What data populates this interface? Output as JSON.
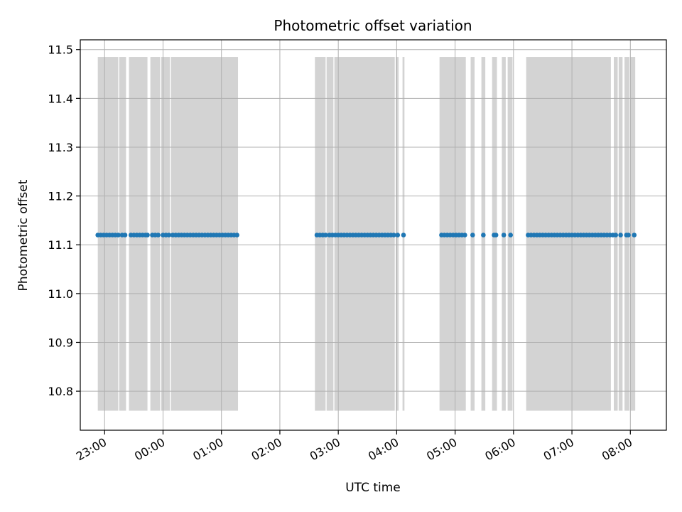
{
  "chart_data": {
    "type": "scatter",
    "title": "Photometric offset variation",
    "xlabel": "UTC time",
    "ylabel": "Photometric offset",
    "xlim": [
      "22:35",
      "08:37"
    ],
    "ylim": [
      10.72,
      11.52
    ],
    "yticks": [
      "10.8",
      "10.9",
      "11.0",
      "11.1",
      "11.2",
      "11.3",
      "11.4",
      "11.5"
    ],
    "xticks": [
      "23:00",
      "00:00",
      "01:00",
      "02:00",
      "03:00",
      "04:00",
      "05:00",
      "06:00",
      "07:00",
      "08:00"
    ],
    "grid": true,
    "band_range": [
      10.76,
      11.485
    ],
    "bands": [
      [
        "22:53",
        "23:14"
      ],
      [
        "23:15",
        "23:22"
      ],
      [
        "23:25",
        "23:44"
      ],
      [
        "23:47",
        "23:57"
      ],
      [
        "23:58",
        "00:07"
      ],
      [
        "00:08",
        "01:17"
      ],
      [
        "02:36",
        "02:47"
      ],
      [
        "02:48",
        "02:55"
      ],
      [
        "02:56",
        "03:58"
      ],
      [
        "03:59",
        "04:02"
      ],
      [
        "04:06",
        "04:08"
      ],
      [
        "04:44",
        "05:11"
      ],
      [
        "05:16",
        "05:20"
      ],
      [
        "05:27",
        "05:31"
      ],
      [
        "05:38",
        "05:43"
      ],
      [
        "05:48",
        "05:52"
      ],
      [
        "05:54",
        "05:59"
      ],
      [
        "06:13",
        "07:40"
      ],
      [
        "07:43",
        "07:47"
      ],
      [
        "07:48",
        "07:52"
      ],
      [
        "07:54",
        "07:59"
      ],
      [
        "08:00",
        "08:05"
      ]
    ],
    "series": [
      {
        "color": "#1f77b4",
        "y": 11.12,
        "x": [
          "22:53",
          "22:56",
          "22:59",
          "23:02",
          "23:05",
          "23:08",
          "23:11",
          "23:14",
          "23:18",
          "23:21",
          "23:27",
          "23:30",
          "23:33",
          "23:36",
          "23:39",
          "23:42",
          "23:44",
          "23:49",
          "23:52",
          "23:55",
          "24:00",
          "24:03",
          "24:06",
          "24:10",
          "24:13",
          "24:16",
          "24:19",
          "24:22",
          "24:25",
          "24:28",
          "24:31",
          "24:34",
          "24:37",
          "24:40",
          "24:43",
          "24:46",
          "24:49",
          "24:52",
          "24:55",
          "24:58",
          "25:01",
          "25:04",
          "25:07",
          "25:10",
          "25:13",
          "25:16",
          "26:38",
          "26:41",
          "26:44",
          "26:47",
          "26:51",
          "26:54",
          "26:57",
          "27:00",
          "27:03",
          "27:06",
          "27:09",
          "27:12",
          "27:15",
          "27:18",
          "27:21",
          "27:24",
          "27:27",
          "27:30",
          "27:33",
          "27:36",
          "27:39",
          "27:42",
          "27:45",
          "27:48",
          "27:51",
          "27:54",
          "27:57",
          "28:01",
          "28:07",
          "28:46",
          "28:49",
          "28:52",
          "28:55",
          "28:58",
          "29:01",
          "29:04",
          "29:07",
          "29:10",
          "29:18",
          "29:29",
          "29:40",
          "29:42",
          "29:50",
          "29:57",
          "30:15",
          "30:18",
          "30:21",
          "30:24",
          "30:27",
          "30:30",
          "30:33",
          "30:36",
          "30:39",
          "30:42",
          "30:45",
          "30:48",
          "30:51",
          "30:54",
          "30:57",
          "31:00",
          "31:03",
          "31:06",
          "31:09",
          "31:12",
          "31:15",
          "31:18",
          "31:21",
          "31:24",
          "31:27",
          "31:30",
          "31:33",
          "31:36",
          "31:39",
          "31:42",
          "31:45",
          "31:50",
          "31:56",
          "31:58",
          "32:04"
        ]
      }
    ]
  }
}
